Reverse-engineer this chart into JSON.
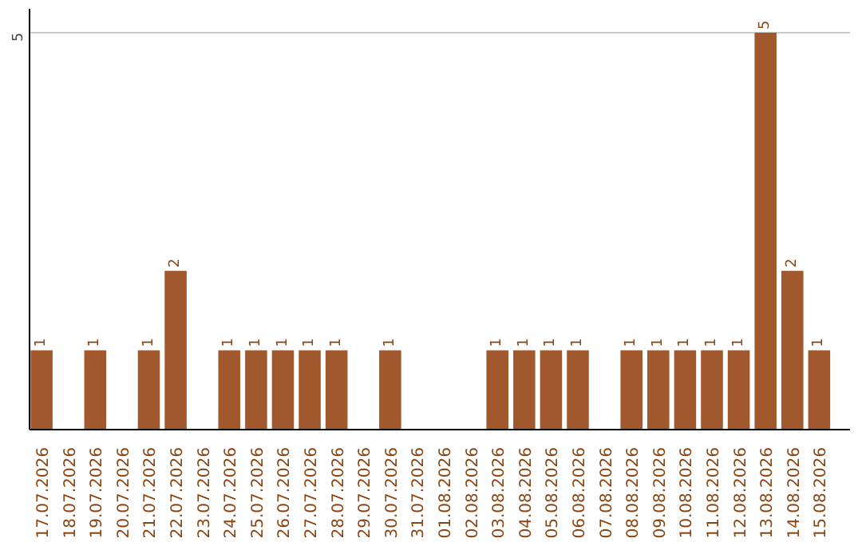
{
  "chart_data": {
    "type": "bar",
    "categories": [
      "17.07.2026",
      "18.07.2026",
      "19.07.2026",
      "20.07.2026",
      "21.07.2026",
      "22.07.2026",
      "23.07.2026",
      "24.07.2026",
      "25.07.2026",
      "26.07.2026",
      "27.07.2026",
      "28.07.2026",
      "29.07.2026",
      "30.07.2026",
      "31.07.2026",
      "01.08.2026",
      "02.08.2026",
      "03.08.2026",
      "04.08.2026",
      "05.08.2026",
      "06.08.2026",
      "07.08.2026",
      "08.08.2026",
      "09.08.2026",
      "10.08.2026",
      "11.08.2026",
      "12.08.2026",
      "13.08.2026",
      "14.08.2026",
      "15.08.2026"
    ],
    "values": [
      1,
      0,
      1,
      0,
      1,
      2,
      0,
      1,
      1,
      1,
      1,
      1,
      0,
      1,
      0,
      0,
      0,
      1,
      1,
      1,
      1,
      0,
      1,
      1,
      1,
      1,
      1,
      5,
      2,
      1
    ],
    "value_labels": [
      "1",
      null,
      "1",
      null,
      "1",
      "2",
      null,
      "1",
      "1",
      "1",
      "1",
      "1",
      null,
      "1",
      null,
      null,
      null,
      "1",
      "1",
      "1",
      "1",
      null,
      "1",
      "1",
      "1",
      "1",
      "1",
      "5",
      "2",
      "1"
    ],
    "color": "#a0582c",
    "ylim": [
      0,
      5.3
    ],
    "yticks": [
      5
    ],
    "grid": "y"
  }
}
